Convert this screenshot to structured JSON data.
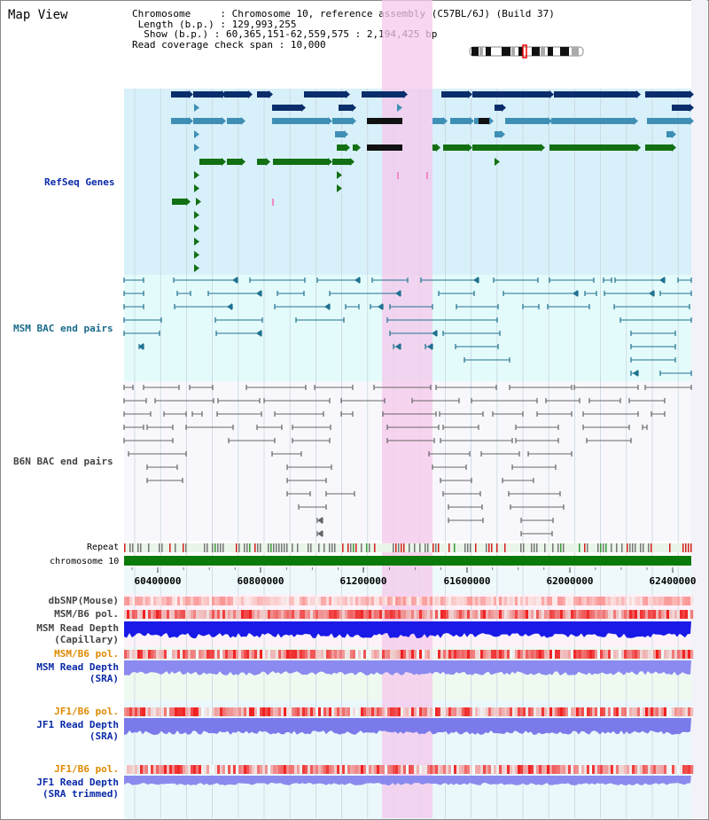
{
  "title": "Map View",
  "info": {
    "chromosome_label": "Chromosome",
    "chromosome_value": "Chromosome 10, reference assembly (C57BL/6J) (Build 37)",
    "length_label": "Length (b.p.)",
    "length_value": "129,993,255",
    "show_label": "Show (b.p.)",
    "show_value": "60,365,151-62,559,575 : 2,194,425 bp",
    "span_label": "Read coverage check span",
    "span_value": "10,000"
  },
  "tracks": {
    "refseq": "RefSeq Genes",
    "msm_bac": "MSM BAC end pairs",
    "b6n_bac": "B6N BAC end pairs",
    "repeat": "Repeat",
    "chromosome": "chromosome 10",
    "dbsnp": "dbSNP(Mouse)",
    "msm_b6_pol": "MSM/B6 pol.",
    "msm_depth_cap_1": "MSM Read Depth",
    "msm_depth_cap_2": "(Capillary)",
    "msm_b6_pol_2": "MSM/B6 pol.",
    "msm_depth_sra_1": "MSM Read Depth",
    "msm_depth_sra_2": "(SRA)",
    "jf1_b6_pol": "JF1/B6 pol.",
    "jf1_depth_sra_1": "JF1 Read Depth",
    "jf1_depth_sra_2": "(SRA)",
    "jf1_b6_pol_2": "JF1/B6 pol.",
    "jf1_depth_trim_1": "JF1 Read Depth",
    "jf1_depth_trim_2": "(SRA trimmed)"
  },
  "axis": {
    "ticks": [
      "60400000",
      "60800000",
      "61200000",
      "61600000",
      "62000000",
      "62400000"
    ]
  },
  "colors": {
    "refseq_bg": "#d8f0fa",
    "msm_bg": "#e4fbfb",
    "b6n_bg": "#f8f8fc",
    "highlight": "#f5c8ec",
    "dark_gene": "#0b2e6b",
    "mid_gene": "#3f8fb5",
    "green_gene": "#127012",
    "chromosome_bar": "#0a7a0a"
  }
}
